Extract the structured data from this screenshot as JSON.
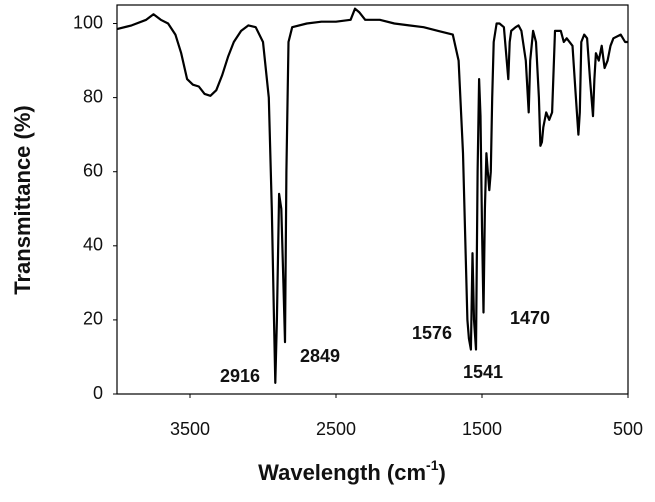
{
  "chart_data": {
    "type": "line",
    "xlabel": "Wavelength (cm",
    "xlabel_sup": "-1",
    "xlabel_end": ")",
    "ylabel": "Transmittance (%)",
    "xlim": [
      4000,
      500
    ],
    "ylim": [
      0,
      105
    ],
    "xticks": [
      3500,
      2500,
      1500,
      500
    ],
    "yticks": [
      0,
      20,
      40,
      60,
      80,
      100
    ],
    "annotations": [
      "2916",
      "2849",
      "1576",
      "1541",
      "1470"
    ],
    "series": [
      {
        "color": "#000000",
        "x": [
          4000,
          3900,
          3800,
          3750,
          3700,
          3650,
          3600,
          3560,
          3520,
          3480,
          3440,
          3400,
          3360,
          3320,
          3280,
          3240,
          3200,
          3150,
          3100,
          3050,
          3000,
          2960,
          2940,
          2925,
          2916,
          2905,
          2890,
          2875,
          2860,
          2849,
          2840,
          2825,
          2800,
          2700,
          2600,
          2500,
          2400,
          2370,
          2340,
          2300,
          2200,
          2100,
          2000,
          1900,
          1800,
          1700,
          1660,
          1630,
          1600,
          1590,
          1576,
          1565,
          1555,
          1541,
          1530,
          1520,
          1510,
          1500,
          1490,
          1480,
          1470,
          1460,
          1450,
          1440,
          1430,
          1420,
          1400,
          1380,
          1350,
          1320,
          1310,
          1300,
          1270,
          1250,
          1230,
          1200,
          1180,
          1170,
          1150,
          1130,
          1110,
          1100,
          1090,
          1080,
          1060,
          1040,
          1020,
          1000,
          960,
          940,
          920,
          880,
          860,
          840,
          830,
          820,
          800,
          780,
          760,
          740,
          730,
          720,
          700,
          680,
          660,
          640,
          620,
          600,
          550,
          520,
          500
        ],
        "values": [
          98.5,
          99.5,
          101,
          102.5,
          101,
          100,
          97,
          92,
          85,
          83.5,
          83,
          81,
          80.5,
          82,
          86,
          91,
          95,
          98,
          99.5,
          99,
          95,
          80,
          50,
          20,
          3,
          20,
          54,
          50,
          30,
          14,
          60,
          95,
          99,
          100,
          100.5,
          100.5,
          101,
          104,
          103,
          101,
          101,
          100,
          99.5,
          99,
          98,
          97,
          90,
          65,
          20,
          15,
          12,
          38,
          20,
          12,
          60,
          85,
          75,
          45,
          22,
          50,
          65,
          60,
          55,
          60,
          80,
          95,
          100,
          100,
          99,
          85,
          95,
          98,
          99,
          99.5,
          98,
          90,
          76,
          90,
          98,
          95,
          80,
          67,
          68,
          72,
          76,
          74,
          76,
          98,
          98,
          95,
          96,
          94,
          82,
          70,
          76,
          95,
          97,
          96,
          85,
          75,
          85,
          92,
          90,
          94,
          88,
          90,
          94,
          96,
          97,
          95,
          95
        ]
      }
    ]
  }
}
